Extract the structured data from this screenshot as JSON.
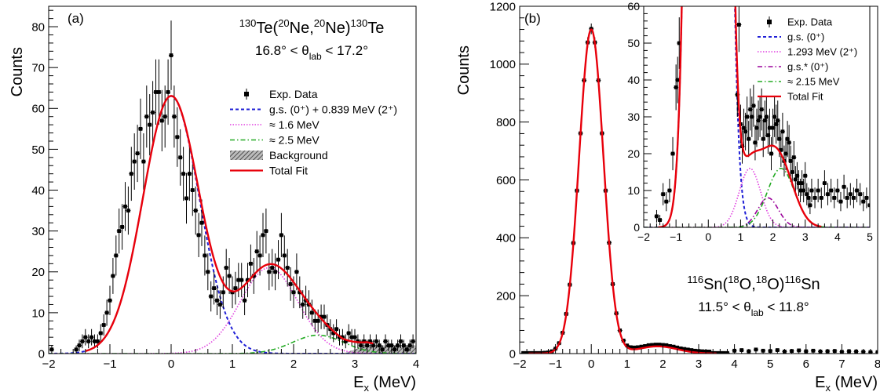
{
  "chart_data": [
    {
      "panel_label": "(a)",
      "type": "scatter",
      "xlabel_main": "E",
      "xlabel_sub": "x",
      "xlabel_unit": " (MeV)",
      "ylabel": "Counts",
      "xlim": [
        -2,
        4
      ],
      "ylim": [
        0,
        85
      ],
      "xticks": [
        -2,
        -1,
        0,
        1,
        2,
        3,
        4
      ],
      "yticks": [
        0,
        10,
        20,
        30,
        40,
        50,
        60,
        70,
        80
      ],
      "reaction": {
        "pre1": "130",
        "t1": "Te(",
        "pre2": "20",
        "t2": "Ne,",
        "pre3": "20",
        "t3": "Ne)",
        "pre4": "130",
        "t4": "Te"
      },
      "angle": {
        "t1": "16.8° < θ",
        "sub": "lab",
        "t2": " < 17.2°"
      },
      "legend": [
        {
          "label": "Exp. Data",
          "style": "data"
        },
        {
          "label": "g.s. (0⁺) + 0.839 MeV (2⁺)",
          "style": "dashed",
          "color": "#1f1fd6"
        },
        {
          "label": "≈ 1.6 MeV",
          "style": "dotted",
          "color": "#e040e0"
        },
        {
          "label": "≈ 2.5 MeV",
          "style": "dashdot",
          "color": "#22aa22"
        },
        {
          "label": "Background",
          "style": "hatched"
        },
        {
          "label": "Total Fit",
          "style": "solid",
          "color": "#e8000b"
        }
      ],
      "exp_data": [
        [
          -1.95,
          1,
          1
        ],
        [
          -1.55,
          1,
          1
        ],
        [
          -1.5,
          2,
          1.4
        ],
        [
          -1.45,
          3,
          1.7
        ],
        [
          -1.4,
          4,
          2
        ],
        [
          -1.35,
          3,
          1.7
        ],
        [
          -1.3,
          4,
          2
        ],
        [
          -1.25,
          3,
          1.7
        ],
        [
          -1.2,
          3,
          1.7
        ],
        [
          -1.15,
          5,
          2.2
        ],
        [
          -1.1,
          7,
          2.6
        ],
        [
          -1.05,
          10,
          3.2
        ],
        [
          -1.0,
          13,
          3.6
        ],
        [
          -0.95,
          19,
          4.4
        ],
        [
          -0.9,
          24,
          4.9
        ],
        [
          -0.85,
          30,
          5.5
        ],
        [
          -0.8,
          31,
          5.6
        ],
        [
          -0.75,
          36,
          6
        ],
        [
          -0.7,
          35,
          5.9
        ],
        [
          -0.65,
          44,
          6.6
        ],
        [
          -0.6,
          47,
          6.9
        ],
        [
          -0.55,
          49,
          7
        ],
        [
          -0.5,
          55,
          7.4
        ],
        [
          -0.45,
          47,
          6.9
        ],
        [
          -0.4,
          58,
          7.6
        ],
        [
          -0.35,
          56,
          7.5
        ],
        [
          -0.3,
          59,
          7.7
        ],
        [
          -0.25,
          64,
          8
        ],
        [
          -0.2,
          64,
          8
        ],
        [
          -0.15,
          57,
          7.5
        ],
        [
          -0.1,
          58,
          7.6
        ],
        [
          -0.05,
          64,
          8
        ],
        [
          0.0,
          73,
          8.5
        ],
        [
          0.05,
          58,
          7.6
        ],
        [
          0.1,
          53,
          7.3
        ],
        [
          0.15,
          48,
          6.9
        ],
        [
          0.2,
          44,
          6.6
        ],
        [
          0.25,
          38,
          6.2
        ],
        [
          0.3,
          44,
          6.6
        ],
        [
          0.35,
          40,
          6.3
        ],
        [
          0.4,
          35,
          5.9
        ],
        [
          0.45,
          29,
          5.4
        ],
        [
          0.5,
          32,
          5.7
        ],
        [
          0.55,
          24,
          4.9
        ],
        [
          0.6,
          20,
          4.5
        ],
        [
          0.65,
          14,
          3.7
        ],
        [
          0.7,
          16,
          4
        ],
        [
          0.75,
          13,
          3.6
        ],
        [
          0.8,
          12,
          3.5
        ],
        [
          0.85,
          15,
          3.9
        ],
        [
          0.9,
          21,
          4.6
        ],
        [
          0.95,
          19,
          4.4
        ],
        [
          1.0,
          15,
          3.9
        ],
        [
          1.05,
          16,
          4
        ],
        [
          1.1,
          18,
          4.2
        ],
        [
          1.15,
          18,
          4.2
        ],
        [
          1.2,
          13,
          3.6
        ],
        [
          1.25,
          18,
          4.2
        ],
        [
          1.3,
          22,
          4.7
        ],
        [
          1.35,
          19,
          4.4
        ],
        [
          1.4,
          25,
          5
        ],
        [
          1.45,
          24,
          4.9
        ],
        [
          1.5,
          29,
          5.4
        ],
        [
          1.55,
          30,
          5.5
        ],
        [
          1.6,
          20,
          4.5
        ],
        [
          1.65,
          21,
          4.6
        ],
        [
          1.7,
          20,
          4.5
        ],
        [
          1.75,
          23,
          4.8
        ],
        [
          1.8,
          29,
          5.4
        ],
        [
          1.85,
          24,
          4.9
        ],
        [
          1.9,
          21,
          4.6
        ],
        [
          1.95,
          17,
          4.1
        ],
        [
          2.0,
          15,
          3.9
        ],
        [
          2.05,
          20,
          4.5
        ],
        [
          2.1,
          15,
          3.9
        ],
        [
          2.15,
          12,
          3.5
        ],
        [
          2.2,
          13,
          3.6
        ],
        [
          2.25,
          12,
          3.5
        ],
        [
          2.3,
          10,
          3.2
        ],
        [
          2.35,
          8,
          2.8
        ],
        [
          2.4,
          8,
          2.8
        ],
        [
          2.45,
          9,
          3
        ],
        [
          2.5,
          9,
          3
        ],
        [
          2.55,
          7,
          2.6
        ],
        [
          2.6,
          6,
          2.4
        ],
        [
          2.65,
          5,
          2.2
        ],
        [
          2.7,
          6,
          2.4
        ],
        [
          2.75,
          4,
          2
        ],
        [
          2.8,
          4,
          2
        ],
        [
          2.85,
          3,
          1.7
        ],
        [
          2.9,
          5,
          2.2
        ],
        [
          2.95,
          4,
          2
        ],
        [
          3.0,
          4,
          2
        ],
        [
          3.05,
          3,
          1.7
        ],
        [
          3.1,
          2,
          1.4
        ],
        [
          3.15,
          3,
          1.7
        ],
        [
          3.2,
          2,
          1.4
        ],
        [
          3.25,
          3,
          1.7
        ],
        [
          3.3,
          2,
          1.4
        ],
        [
          3.35,
          3,
          1.7
        ],
        [
          3.4,
          2,
          1.4
        ],
        [
          3.45,
          1,
          1
        ],
        [
          3.5,
          3,
          1.7
        ],
        [
          3.55,
          2,
          1.4
        ],
        [
          3.6,
          2,
          1.4
        ],
        [
          3.65,
          1,
          1
        ],
        [
          3.7,
          2,
          1.4
        ],
        [
          3.75,
          3,
          1.7
        ],
        [
          3.8,
          2,
          1.4
        ],
        [
          3.85,
          1,
          1
        ],
        [
          3.9,
          2,
          1.4
        ],
        [
          3.95,
          3,
          1.7
        ]
      ],
      "components": [
        {
          "name": "g.s. (0⁺) + 0.839 MeV (2⁺)",
          "gaussians": [
            [
              0.0,
              0.46,
              63
            ]
          ]
        },
        {
          "name": "≈ 1.6 MeV",
          "gaussians": [
            [
              1.6,
              0.47,
              21
            ]
          ]
        },
        {
          "name": "≈ 2.5 MeV",
          "gaussians": [
            [
              2.4,
              0.42,
              4.5
            ]
          ]
        }
      ],
      "background": [
        [
          2.8,
          0
        ],
        [
          3.0,
          1
        ],
        [
          3.2,
          2
        ],
        [
          3.4,
          2
        ],
        [
          3.6,
          2
        ],
        [
          3.8,
          2
        ],
        [
          4.0,
          2
        ]
      ],
      "total_fit": {
        "range": [
          -1.4,
          3.3
        ]
      }
    },
    {
      "panel_label": "(b)",
      "type": "scatter",
      "xlabel_main": "E",
      "xlabel_sub": "x",
      "xlabel_unit": " (MeV)",
      "ylabel": "Counts",
      "xlim": [
        -2,
        8
      ],
      "ylim": [
        0,
        1200
      ],
      "xticks": [
        -2,
        -1,
        0,
        1,
        2,
        3,
        4,
        5,
        6,
        7,
        8
      ],
      "yticks": [
        0,
        200,
        400,
        600,
        800,
        1000,
        1200
      ],
      "reaction": {
        "pre1": "116",
        "t1": "Sn(",
        "pre2": "18",
        "t2": "O,",
        "pre3": "18",
        "t3": "O)",
        "pre4": "116",
        "t4": "Sn"
      },
      "angle": {
        "t1": "11.5° < θ",
        "sub": "lab",
        "t2": " < 11.8°"
      },
      "main_fit": {
        "center": 0.0,
        "sigma": 0.34,
        "amplitude": 1120
      },
      "bump": {
        "center": 1.85,
        "sigma": 0.55,
        "amplitude": 25
      },
      "tail_points": [
        [
          4.0,
          10
        ],
        [
          4.2,
          12
        ],
        [
          4.4,
          8
        ],
        [
          4.6,
          14
        ],
        [
          4.8,
          10
        ],
        [
          5.0,
          9
        ],
        [
          5.2,
          12
        ],
        [
          5.4,
          7
        ],
        [
          5.6,
          9
        ],
        [
          5.8,
          11
        ],
        [
          6.0,
          8
        ],
        [
          6.2,
          10
        ],
        [
          6.4,
          7
        ],
        [
          6.6,
          8
        ],
        [
          6.8,
          9
        ],
        [
          7.0,
          6
        ],
        [
          7.2,
          8
        ],
        [
          7.4,
          7
        ],
        [
          7.6,
          6
        ],
        [
          7.8,
          5
        ],
        [
          8.0,
          5
        ]
      ],
      "inset": {
        "xlim": [
          -2,
          5
        ],
        "ylim": [
          0,
          60
        ],
        "xticks": [
          -2,
          -1,
          0,
          1,
          2,
          3,
          4,
          5
        ],
        "yticks": [
          0,
          10,
          20,
          30,
          40,
          50,
          60
        ],
        "legend": [
          {
            "label": "Exp. Data",
            "style": "data"
          },
          {
            "label": "g.s. (0⁺)",
            "style": "dashed",
            "color": "#1f1fd6"
          },
          {
            "label": "1.293 MeV (2⁺)",
            "style": "dotted",
            "color": "#e040e0"
          },
          {
            "label": "g.s.* (0⁺)",
            "style": "dashdot",
            "color": "#9a009a"
          },
          {
            "label": "≈ 2.15 MeV",
            "style": "dashdot",
            "color": "#22aa22"
          },
          {
            "label": "Total Fit",
            "style": "solid",
            "color": "#e8000b"
          }
        ],
        "exp_data": [
          [
            -1.6,
            3,
            1.7
          ],
          [
            -1.5,
            2,
            1.4
          ],
          [
            -1.4,
            9,
            3
          ],
          [
            -1.3,
            7,
            2.6
          ],
          [
            -1.2,
            10,
            3.2
          ],
          [
            -1.1,
            20,
            4.5
          ],
          [
            -1.0,
            38,
            6.2
          ],
          [
            -0.95,
            40,
            6.3
          ],
          [
            -0.9,
            50,
            7
          ],
          [
            0.9,
            36,
            6
          ],
          [
            0.95,
            55,
            7.4
          ],
          [
            1.0,
            28,
            5.3
          ],
          [
            1.05,
            22,
            4.7
          ],
          [
            1.1,
            27,
            5.2
          ],
          [
            1.15,
            26,
            5.1
          ],
          [
            1.2,
            30,
            5.5
          ],
          [
            1.25,
            24,
            4.9
          ],
          [
            1.3,
            32,
            5.7
          ],
          [
            1.35,
            30,
            5.5
          ],
          [
            1.4,
            33,
            5.7
          ],
          [
            1.45,
            23,
            4.8
          ],
          [
            1.5,
            27,
            5.2
          ],
          [
            1.55,
            29,
            5.4
          ],
          [
            1.6,
            30,
            5.5
          ],
          [
            1.65,
            32,
            5.7
          ],
          [
            1.7,
            24,
            4.9
          ],
          [
            1.75,
            29,
            5.4
          ],
          [
            1.8,
            30,
            5.5
          ],
          [
            1.85,
            25,
            5
          ],
          [
            1.9,
            27,
            5.2
          ],
          [
            1.95,
            20,
            4.5
          ],
          [
            2.0,
            27,
            5.2
          ],
          [
            2.05,
            30,
            5.5
          ],
          [
            2.1,
            28,
            5.3
          ],
          [
            2.15,
            29,
            5.4
          ],
          [
            2.2,
            24,
            4.9
          ],
          [
            2.25,
            21,
            4.6
          ],
          [
            2.3,
            26,
            5.1
          ],
          [
            2.35,
            18,
            4.2
          ],
          [
            2.4,
            20,
            4.5
          ],
          [
            2.45,
            24,
            4.9
          ],
          [
            2.5,
            23,
            4.8
          ],
          [
            2.55,
            18,
            4.2
          ],
          [
            2.6,
            15,
            3.9
          ],
          [
            2.65,
            19,
            4.4
          ],
          [
            2.7,
            13,
            3.6
          ],
          [
            2.75,
            14,
            3.7
          ],
          [
            2.8,
            12,
            3.5
          ],
          [
            2.85,
            10,
            3.2
          ],
          [
            2.9,
            12,
            3.5
          ],
          [
            2.95,
            10,
            3.2
          ],
          [
            3.0,
            14,
            3.7
          ],
          [
            3.05,
            9,
            3
          ],
          [
            3.1,
            8,
            2.8
          ],
          [
            3.15,
            6,
            2.4
          ],
          [
            3.2,
            10,
            3.2
          ],
          [
            3.3,
            8,
            2.8
          ],
          [
            3.4,
            10,
            3.2
          ],
          [
            3.5,
            8,
            2.8
          ],
          [
            3.6,
            12,
            3.5
          ],
          [
            3.7,
            9,
            3
          ],
          [
            3.8,
            10,
            3.2
          ],
          [
            3.9,
            8,
            2.8
          ],
          [
            4.0,
            10,
            3.2
          ],
          [
            4.1,
            7,
            2.6
          ],
          [
            4.2,
            11,
            3.3
          ],
          [
            4.3,
            8,
            2.8
          ],
          [
            4.4,
            9,
            3
          ],
          [
            4.5,
            8,
            2.8
          ],
          [
            4.6,
            10,
            3.2
          ],
          [
            4.7,
            9,
            3
          ],
          [
            4.8,
            7,
            2.6
          ],
          [
            4.9,
            8,
            2.8
          ],
          [
            5.0,
            6,
            2.4
          ]
        ],
        "components": [
          {
            "name": "g.s. (0⁺)",
            "gaussians": [
              [
                0.0,
                0.34,
                1120
              ]
            ]
          },
          {
            "name": "1.293 MeV (2⁺)",
            "gaussians": [
              [
                1.29,
                0.33,
                16
              ]
            ]
          },
          {
            "name": "g.s.* (0⁺)",
            "gaussians": [
              [
                1.85,
                0.32,
                8
              ]
            ]
          },
          {
            "name": "≈ 2.15 MeV",
            "gaussians": [
              [
                2.25,
                0.42,
                16
              ]
            ]
          }
        ]
      }
    }
  ]
}
